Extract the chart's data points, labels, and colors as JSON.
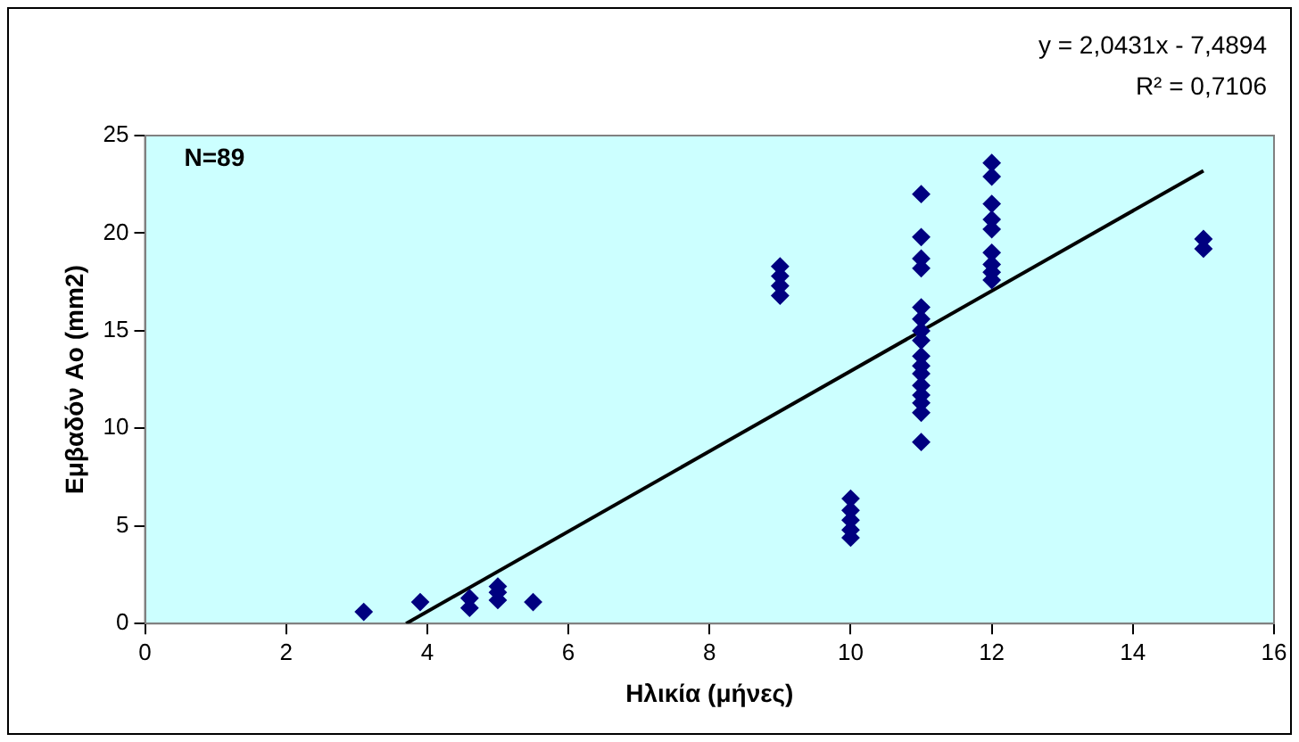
{
  "chart_data": {
    "type": "scatter",
    "xlabel": "Ηλικία (μήνες)",
    "ylabel": "Εμβαδόν Ao (mm2)",
    "annotations": [
      "y = 2,0431x - 7,4894",
      "R² = 0,7106",
      "N=89"
    ],
    "xlim": [
      0,
      16
    ],
    "xticks": [
      0,
      2,
      4,
      6,
      8,
      10,
      12,
      14,
      16
    ],
    "ylim": [
      0,
      25
    ],
    "yticks": [
      0,
      5,
      10,
      15,
      20,
      25
    ],
    "grid": false,
    "legend": false,
    "series": [
      {
        "color": "#000080",
        "marker": "diamond",
        "x": [
          3.1,
          3.9,
          4.6,
          4.6,
          5,
          5,
          5,
          5.5,
          9,
          9,
          9,
          9,
          10,
          10,
          10,
          10,
          10,
          11,
          11,
          11,
          11,
          11,
          11,
          11,
          11,
          11,
          11,
          11,
          11,
          11,
          11,
          11,
          11,
          12,
          12,
          12,
          12,
          12,
          12,
          12,
          12,
          12,
          15,
          15
        ],
        "values": [
          0.6,
          1.1,
          0.8,
          1.3,
          1.2,
          1.6,
          1.9,
          1.1,
          16.8,
          17.3,
          17.8,
          18.3,
          4.4,
          4.8,
          5.3,
          5.8,
          6.4,
          9.3,
          10.8,
          11.3,
          11.7,
          12.2,
          12.8,
          13.2,
          13.7,
          14.5,
          15.0,
          15.6,
          16.2,
          18.2,
          18.7,
          19.8,
          22.0,
          17.6,
          18.0,
          18.4,
          19.0,
          20.2,
          20.7,
          21.5,
          22.9,
          23.6,
          19.2,
          19.7
        ]
      },
      {
        "type": "line",
        "color": "#000000",
        "marker": "none",
        "x": [
          3.7,
          15
        ],
        "values": [
          0,
          23.2
        ]
      }
    ]
  }
}
